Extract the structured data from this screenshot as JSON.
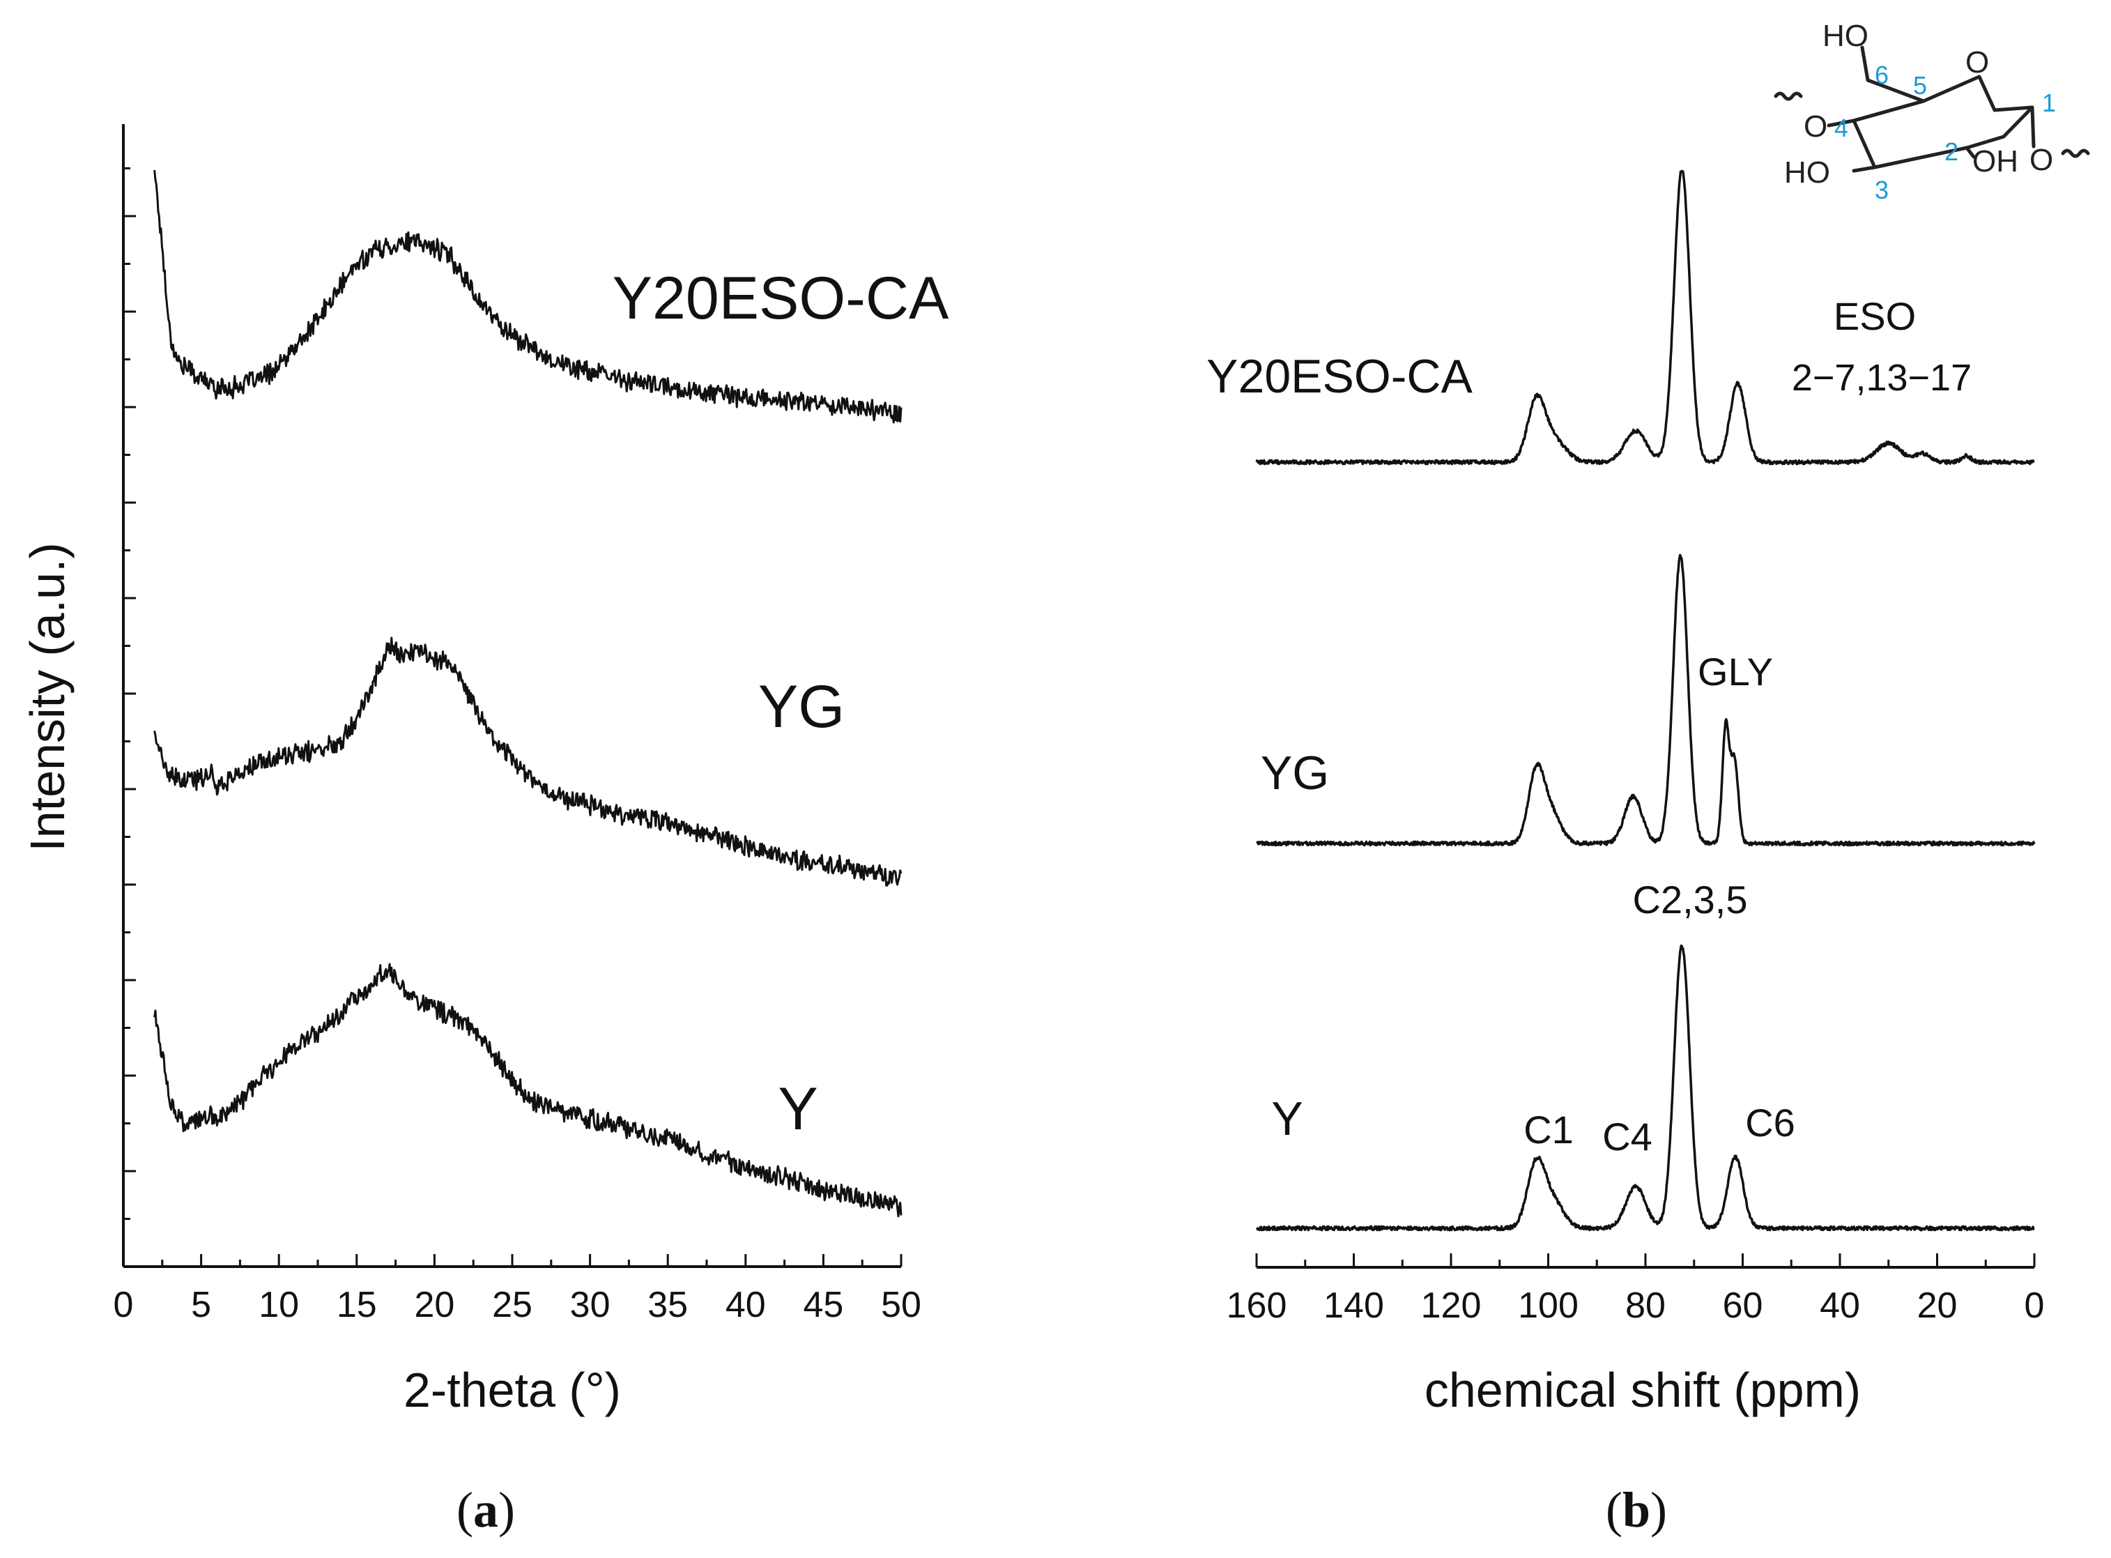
{
  "chart_data": [
    {
      "panel": "a",
      "type": "line",
      "panel_label_letter": "a",
      "xlabel": "2-theta (°)",
      "ylabel": "Intensity (a.u.)",
      "xlim": [
        0,
        50
      ],
      "xticks": [
        "0",
        "5",
        "10",
        "15",
        "20",
        "25",
        "30",
        "35",
        "40",
        "45",
        "50"
      ],
      "y_ticks_labeled": false,
      "series": [
        {
          "name": "Y20ESO-CA",
          "points": [
            [
              2,
              6.25
            ],
            [
              2.5,
              5.8
            ],
            [
              3,
              5.3
            ],
            [
              3.5,
              5.15
            ],
            [
              4,
              5.12
            ],
            [
              5,
              5.05
            ],
            [
              6,
              5.0
            ],
            [
              7,
              5.0
            ],
            [
              8,
              5.03
            ],
            [
              9,
              5.06
            ],
            [
              10,
              5.12
            ],
            [
              11,
              5.22
            ],
            [
              12,
              5.33
            ],
            [
              13,
              5.45
            ],
            [
              14,
              5.58
            ],
            [
              15,
              5.7
            ],
            [
              16,
              5.78
            ],
            [
              17,
              5.8
            ],
            [
              18,
              5.83
            ],
            [
              19,
              5.82
            ],
            [
              20,
              5.8
            ],
            [
              21,
              5.75
            ],
            [
              22,
              5.62
            ],
            [
              23,
              5.48
            ],
            [
              24,
              5.38
            ],
            [
              25,
              5.3
            ],
            [
              26,
              5.24
            ],
            [
              28,
              5.14
            ],
            [
              30,
              5.09
            ],
            [
              32,
              5.05
            ],
            [
              35,
              5.0
            ],
            [
              38,
              4.97
            ],
            [
              40,
              4.94
            ],
            [
              42,
              4.93
            ],
            [
              45,
              4.91
            ],
            [
              48,
              4.88
            ],
            [
              50,
              4.86
            ]
          ]
        },
        {
          "name": "YG",
          "points": [
            [
              2,
              3.05
            ],
            [
              2.5,
              2.88
            ],
            [
              3,
              2.78
            ],
            [
              4,
              2.76
            ],
            [
              5,
              2.78
            ],
            [
              5.5,
              2.82
            ],
            [
              6,
              2.74
            ],
            [
              7,
              2.78
            ],
            [
              8,
              2.83
            ],
            [
              9,
              2.87
            ],
            [
              10,
              2.9
            ],
            [
              12,
              2.93
            ],
            [
              13,
              2.95
            ],
            [
              14,
              3.0
            ],
            [
              15,
              3.13
            ],
            [
              16,
              3.3
            ],
            [
              17,
              3.53
            ],
            [
              18,
              3.48
            ],
            [
              19,
              3.5
            ],
            [
              20,
              3.47
            ],
            [
              21,
              3.43
            ],
            [
              22,
              3.28
            ],
            [
              23,
              3.12
            ],
            [
              24,
              2.98
            ],
            [
              25,
              2.9
            ],
            [
              26,
              2.8
            ],
            [
              27,
              2.72
            ],
            [
              28,
              2.68
            ],
            [
              30,
              2.63
            ],
            [
              32,
              2.58
            ],
            [
              34,
              2.55
            ],
            [
              36,
              2.49
            ],
            [
              38,
              2.45
            ],
            [
              40,
              2.4
            ],
            [
              42,
              2.34
            ],
            [
              44,
              2.3
            ],
            [
              46,
              2.28
            ],
            [
              48,
              2.24
            ],
            [
              50,
              2.2
            ]
          ]
        },
        {
          "name": "Y",
          "points": [
            [
              2,
              1.45
            ],
            [
              2.5,
              1.2
            ],
            [
              3,
              0.95
            ],
            [
              3.5,
              0.85
            ],
            [
              4,
              0.8
            ],
            [
              5,
              0.84
            ],
            [
              6,
              0.85
            ],
            [
              7,
              0.9
            ],
            [
              8,
              0.98
            ],
            [
              9,
              1.08
            ],
            [
              10,
              1.18
            ],
            [
              11,
              1.25
            ],
            [
              12,
              1.3
            ],
            [
              13,
              1.36
            ],
            [
              14,
              1.45
            ],
            [
              15,
              1.55
            ],
            [
              16,
              1.6
            ],
            [
              17,
              1.7
            ],
            [
              18,
              1.58
            ],
            [
              19,
              1.52
            ],
            [
              20,
              1.47
            ],
            [
              21,
              1.43
            ],
            [
              22,
              1.38
            ],
            [
              23,
              1.3
            ],
            [
              24,
              1.18
            ],
            [
              25,
              1.05
            ],
            [
              26,
              0.96
            ],
            [
              27,
              0.92
            ],
            [
              28,
              0.89
            ],
            [
              30,
              0.84
            ],
            [
              32,
              0.8
            ],
            [
              34,
              0.75
            ],
            [
              36,
              0.7
            ],
            [
              38,
              0.63
            ],
            [
              40,
              0.57
            ],
            [
              42,
              0.52
            ],
            [
              44,
              0.46
            ],
            [
              46,
              0.41
            ],
            [
              48,
              0.38
            ],
            [
              50,
              0.34
            ]
          ]
        }
      ]
    },
    {
      "panel": "b",
      "type": "line",
      "panel_label_letter": "b",
      "xlabel": "chemical shift (ppm)",
      "ylabel": "",
      "xlim": [
        160,
        0
      ],
      "x_reversed": true,
      "xticks": [
        "160",
        "140",
        "120",
        "100",
        "80",
        "60",
        "40",
        "20",
        "0"
      ],
      "series": [
        {
          "name": "Y20ESO-CA",
          "baseline": 0.0,
          "peaks": [
            {
              "center": 102.5,
              "height": 0.55,
              "width": 1.8
            },
            {
              "center": 99,
              "height": 0.22,
              "width": 2.5
            },
            {
              "center": 82,
              "height": 0.3,
              "width": 2.2
            },
            {
              "center": 72.5,
              "height": 2.8,
              "width": 1.6
            },
            {
              "center": 61,
              "height": 0.75,
              "width": 1.6
            },
            {
              "center": 30,
              "height": 0.18,
              "width": 2.5
            },
            {
              "center": 23,
              "height": 0.08,
              "width": 1.5
            },
            {
              "center": 14,
              "height": 0.06,
              "width": 1.0
            }
          ],
          "annotations": [
            "ESO",
            "2−7,13−17"
          ]
        },
        {
          "name": "YG",
          "baseline": 0.0,
          "peaks": [
            {
              "center": 102.5,
              "height": 0.65,
              "width": 1.6
            },
            {
              "center": 99.5,
              "height": 0.3,
              "width": 2.0
            },
            {
              "center": 82.5,
              "height": 0.45,
              "width": 1.8
            },
            {
              "center": 72.8,
              "height": 2.75,
              "width": 1.5
            },
            {
              "center": 63.5,
              "height": 1.1,
              "width": 0.7
            },
            {
              "center": 61.7,
              "height": 0.8,
              "width": 0.8
            }
          ],
          "annotations": [
            "GLY"
          ]
        },
        {
          "name": "Y",
          "baseline": 0.0,
          "peaks": [
            {
              "center": 102.5,
              "height": 0.6,
              "width": 1.8
            },
            {
              "center": 99,
              "height": 0.25,
              "width": 2.2
            },
            {
              "center": 82,
              "height": 0.4,
              "width": 2.0
            },
            {
              "center": 72.5,
              "height": 2.7,
              "width": 1.6
            },
            {
              "center": 61.5,
              "height": 0.68,
              "width": 1.6
            }
          ],
          "annotations": [
            "C1",
            "C4",
            "C2,3,5",
            "C6"
          ]
        }
      ],
      "inset_structure": {
        "labels": [
          "HO",
          "6",
          "5",
          "O",
          "1",
          "4",
          "O",
          "2",
          "OH",
          "O",
          "HO",
          "3"
        ]
      }
    }
  ]
}
